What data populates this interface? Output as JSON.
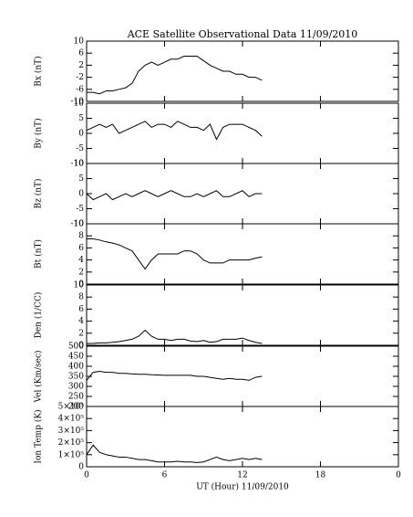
{
  "chart_data": [
    {
      "type": "line",
      "title": "ACE Satellite Observational Data   11/09/2010",
      "ylabel": "Bx (nT)",
      "color": "#000000",
      "x": [
        0,
        0.5,
        1,
        1.5,
        2,
        2.5,
        3,
        3.5,
        4,
        4.5,
        5,
        5.5,
        6,
        6.5,
        7,
        7.5,
        8,
        8.5,
        9,
        9.5,
        10,
        10.5,
        11,
        11.5,
        12,
        12.5,
        13,
        13.5
      ],
      "values": [
        -7,
        -7,
        -7.5,
        -6.5,
        -6.5,
        -6,
        -5.5,
        -4,
        0,
        2,
        3,
        2,
        3,
        4,
        4,
        5,
        5,
        5,
        3.5,
        2,
        1,
        0,
        0,
        -1,
        -1,
        -2,
        -2,
        -3
      ],
      "xlim": [
        0,
        24
      ],
      "xticks": [
        0,
        6,
        12,
        18,
        {
          "value": 24,
          "label": "0"
        }
      ],
      "ylim": [
        -10,
        10
      ],
      "yticks": [
        -10,
        -6,
        -2,
        2,
        6,
        10
      ]
    },
    {
      "type": "line",
      "ylabel": "By (nT)",
      "color": "#000000",
      "x": [
        0,
        0.5,
        1,
        1.5,
        2,
        2.5,
        3,
        3.5,
        4,
        4.5,
        5,
        5.5,
        6,
        6.5,
        7,
        7.5,
        8,
        8.5,
        9,
        9.5,
        10,
        10.5,
        11,
        11.5,
        12,
        12.5,
        13,
        13.5
      ],
      "values": [
        1,
        2,
        3,
        2,
        3,
        0,
        1,
        2,
        3,
        4,
        2,
        3,
        3,
        2,
        4,
        3,
        2,
        2,
        1,
        3,
        -2,
        2,
        3,
        3,
        3,
        2,
        1,
        -1
      ],
      "xlim": [
        0,
        24
      ],
      "xticks": [
        0,
        6,
        12,
        18,
        {
          "value": 24,
          "label": "0"
        }
      ],
      "ylim": [
        -10,
        10
      ],
      "yticks": [
        -10,
        -5,
        0,
        5,
        10
      ]
    },
    {
      "type": "line",
      "ylabel": "Bz (nT)",
      "color": "#000000",
      "x": [
        0,
        0.5,
        1,
        1.5,
        2,
        2.5,
        3,
        3.5,
        4,
        4.5,
        5,
        5.5,
        6,
        6.5,
        7,
        7.5,
        8,
        8.5,
        9,
        9.5,
        10,
        10.5,
        11,
        11.5,
        12,
        12.5,
        13,
        13.5
      ],
      "values": [
        0,
        -2,
        -1,
        0,
        -2,
        -1,
        0,
        -1,
        0,
        1,
        0,
        -1,
        0,
        1,
        0,
        -1,
        -1,
        0,
        -1,
        0,
        1,
        -1,
        -1,
        0,
        1,
        -1,
        0,
        0
      ],
      "xlim": [
        0,
        24
      ],
      "xticks": [
        0,
        6,
        12,
        18,
        {
          "value": 24,
          "label": "0"
        }
      ],
      "ylim": [
        -10,
        10
      ],
      "yticks": [
        -10,
        -5,
        0,
        5,
        10
      ]
    },
    {
      "type": "line",
      "ylabel": "Bt (nT)",
      "color": "#000000",
      "x": [
        0,
        0.5,
        1,
        1.5,
        2,
        2.5,
        3,
        3.5,
        4,
        4.5,
        5,
        5.5,
        6,
        6.5,
        7,
        7.5,
        8,
        8.5,
        9,
        9.5,
        10,
        10.5,
        11,
        11.5,
        12,
        12.5,
        13,
        13.5
      ],
      "values": [
        7.5,
        7.5,
        7.3,
        7,
        6.8,
        6.5,
        6,
        5.5,
        4,
        2.5,
        4,
        5,
        5,
        5,
        5,
        5.5,
        5.5,
        5,
        4,
        3.5,
        3.5,
        3.5,
        4,
        4,
        4,
        4,
        4.3,
        4.5
      ],
      "xlim": [
        0,
        24
      ],
      "xticks": [
        0,
        6,
        12,
        18,
        {
          "value": 24,
          "label": "0"
        }
      ],
      "ylim": [
        0,
        10
      ],
      "yticks": [
        0,
        2,
        4,
        6,
        8,
        10
      ]
    },
    {
      "type": "line",
      "ylabel": "Den (1/CC)",
      "color": "#000000",
      "x": [
        0,
        0.5,
        1,
        1.5,
        2,
        2.5,
        3,
        3.5,
        4,
        4.5,
        5,
        5.5,
        6,
        6.5,
        7,
        7.5,
        8,
        8.5,
        9,
        9.5,
        10,
        10.5,
        11,
        11.5,
        12,
        12.5,
        13,
        13.5
      ],
      "values": [
        0.3,
        0.3,
        0.4,
        0.4,
        0.5,
        0.6,
        0.8,
        1,
        1.5,
        2.5,
        1.5,
        1,
        1,
        0.8,
        1,
        1,
        0.7,
        0.6,
        0.8,
        0.5,
        0.6,
        1,
        1,
        1,
        1.2,
        0.8,
        0.5,
        0.3
      ],
      "xlim": [
        0,
        24
      ],
      "xticks": [
        0,
        6,
        12,
        18,
        {
          "value": 24,
          "label": "0"
        }
      ],
      "ylim": [
        0,
        10
      ],
      "yticks": [
        0,
        2,
        4,
        6,
        8,
        10
      ]
    },
    {
      "type": "line",
      "ylabel": "Vel (Km/sec)",
      "color": "#000000",
      "x": [
        0,
        0.5,
        1,
        1.5,
        2,
        2.5,
        3,
        3.5,
        4,
        4.5,
        5,
        5.5,
        6,
        6.5,
        7,
        7.5,
        8,
        8.5,
        9,
        9.5,
        10,
        10.5,
        11,
        11.5,
        12,
        12.5,
        13,
        13.5
      ],
      "values": [
        330,
        370,
        375,
        370,
        370,
        365,
        365,
        362,
        360,
        360,
        358,
        357,
        355,
        355,
        355,
        355,
        355,
        350,
        350,
        345,
        340,
        335,
        340,
        335,
        335,
        330,
        345,
        350
      ],
      "xlim": [
        0,
        24
      ],
      "xticks": [
        0,
        6,
        12,
        18,
        {
          "value": 24,
          "label": "0"
        }
      ],
      "ylim": [
        200,
        500
      ],
      "yticks": [
        200,
        250,
        300,
        350,
        400,
        450,
        500
      ]
    },
    {
      "type": "line",
      "ylabel": "Ion Temp (K)",
      "xlabel": "UT (Hour)  11/09/2010",
      "color": "#000000",
      "x": [
        0,
        0.5,
        1,
        1.5,
        2,
        2.5,
        3,
        3.5,
        4,
        4.5,
        5,
        5.5,
        6,
        6.5,
        7,
        7.5,
        8,
        8.5,
        9,
        9.5,
        10,
        10.5,
        11,
        11.5,
        12,
        12.5,
        13,
        13.5
      ],
      "values": [
        100000,
        180000,
        120000,
        100000,
        90000,
        80000,
        80000,
        70000,
        60000,
        60000,
        50000,
        40000,
        40000,
        40000,
        45000,
        40000,
        40000,
        35000,
        40000,
        60000,
        80000,
        60000,
        50000,
        60000,
        70000,
        60000,
        70000,
        60000
      ],
      "xlim": [
        0,
        24
      ],
      "xticks": [
        0,
        6,
        12,
        18,
        {
          "value": 24,
          "label": "0"
        }
      ],
      "ylim": [
        0,
        500000
      ],
      "yticks": [
        0,
        {
          "value": 100000,
          "label": "1×10⁵"
        },
        {
          "value": 200000,
          "label": "2×10⁵"
        },
        {
          "value": 300000,
          "label": "3×10⁵"
        },
        {
          "value": 400000,
          "label": "4×10⁵"
        },
        {
          "value": 500000,
          "label": "5×10⁵"
        }
      ]
    }
  ]
}
